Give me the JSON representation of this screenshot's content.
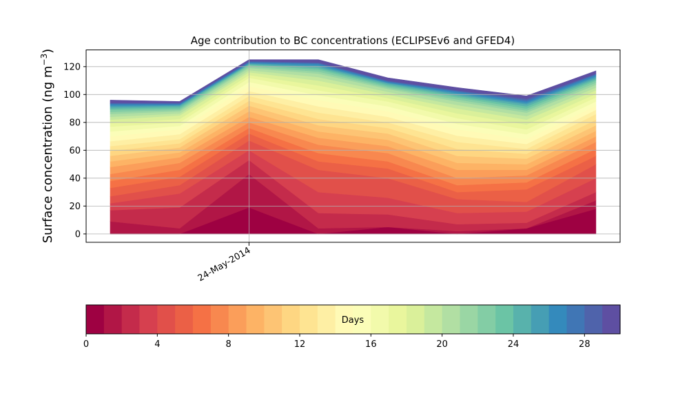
{
  "chart_data": {
    "type": "area",
    "title": "Age contribution to BC concentrations (ECLIPSEv6 and GFED4)",
    "ylabel_main": "Surface concentration (ng m",
    "ylabel_sup": "−3",
    "ylabel_close": ")",
    "ylim": [
      -6,
      132
    ],
    "yticks": [
      0,
      20,
      40,
      60,
      80,
      100,
      120
    ],
    "xticks": [
      {
        "index": 2,
        "label": "24-May-2014"
      }
    ],
    "grid": true,
    "x_index": [
      0,
      1,
      2,
      3,
      4,
      5,
      6,
      7
    ],
    "series_anchor_days": [
      0,
      1,
      2,
      3,
      4,
      5,
      6,
      7,
      8,
      10,
      12,
      14,
      16,
      18,
      20,
      22,
      24,
      26,
      28,
      30
    ],
    "cumulative_anchors": [
      [
        0,
        0,
        19,
        0,
        5,
        0,
        4,
        18
      ],
      [
        9,
        4,
        43,
        4,
        5,
        2,
        4,
        24
      ],
      [
        17,
        19,
        53,
        15,
        14,
        7,
        8,
        30
      ],
      [
        22,
        29,
        60,
        30,
        26,
        15,
        16,
        40
      ],
      [
        27,
        35,
        67,
        46,
        40,
        25,
        23,
        50
      ],
      [
        33,
        41,
        72,
        52,
        47,
        30,
        32,
        56
      ],
      [
        38,
        46,
        76,
        58,
        52,
        35,
        37,
        61
      ],
      [
        43,
        51,
        80,
        64,
        58,
        40,
        42,
        66
      ],
      [
        48,
        55,
        84,
        69,
        63,
        46,
        46,
        70
      ],
      [
        56,
        62,
        92,
        78,
        72,
        56,
        54,
        78
      ],
      [
        63,
        68,
        99,
        87,
        80,
        66,
        61,
        86
      ],
      [
        70,
        75,
        106,
        96,
        88,
        75,
        68,
        92
      ],
      [
        77,
        80,
        112,
        103,
        95,
        83,
        75,
        98
      ],
      [
        82,
        85,
        116,
        110,
        100,
        90,
        82,
        103
      ],
      [
        86,
        88,
        119,
        115,
        104,
        95,
        87,
        107
      ],
      [
        89,
        90,
        121,
        118,
        106,
        98,
        90,
        110
      ],
      [
        91,
        92,
        122,
        120,
        108,
        100,
        93,
        112
      ],
      [
        93,
        93,
        123,
        122,
        109,
        102,
        95,
        114
      ],
      [
        94,
        94,
        124,
        123,
        110,
        103,
        97,
        115
      ],
      [
        96,
        95,
        125,
        125,
        112,
        105,
        99,
        117
      ]
    ],
    "colorbar": {
      "label": "Days",
      "min": 0,
      "max": 30,
      "ticks": [
        0,
        4,
        8,
        12,
        16,
        20,
        24,
        28
      ],
      "colormap": "Spectral_r"
    }
  }
}
